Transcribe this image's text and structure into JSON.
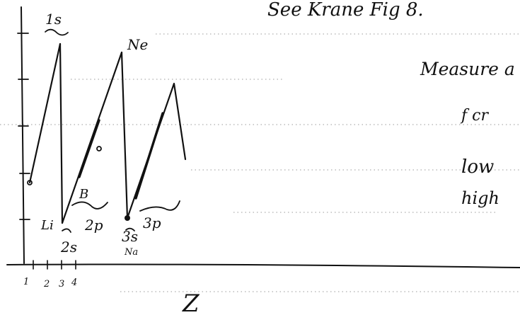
{
  "header_note": "See Krane Fig 8.",
  "side_notes": {
    "measure": "Measure a",
    "fraction": "f cr",
    "low": "low",
    "high": "high"
  },
  "shell_labels": {
    "s1": "1s",
    "neon": "Ne",
    "p2": "2p",
    "s2": "2s",
    "s3": "3s",
    "sodium": "Na",
    "p3": "3p",
    "li": "Li",
    "b": "B"
  },
  "axis": {
    "x_ticks": [
      "1",
      "2",
      "3",
      "4"
    ],
    "xlabel": "Z"
  },
  "colors": {
    "ink": "#111111",
    "guide_dots": "#999999"
  }
}
